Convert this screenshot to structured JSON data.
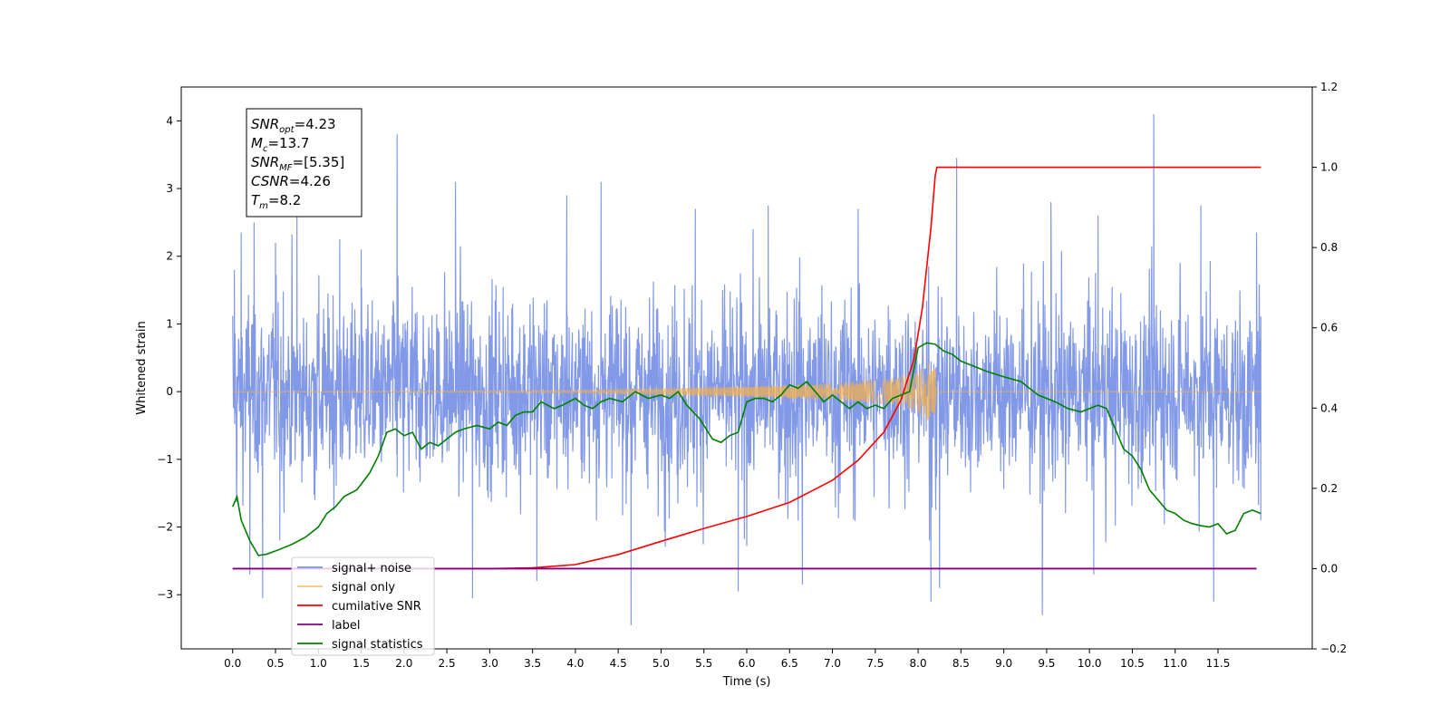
{
  "chart_data": {
    "type": "line",
    "title": "",
    "xlabel": "Time (s)",
    "ylabel": "Whitened strain",
    "xlim": [
      -0.6,
      12.6
    ],
    "ylim": [
      -3.8,
      4.5
    ],
    "ylim_right": [
      -0.2,
      1.2
    ],
    "xticks": [
      "0.0",
      "0.5",
      "1.0",
      "1.5",
      "2.0",
      "2.5",
      "3.0",
      "3.5",
      "4.0",
      "4.5",
      "5.0",
      "5.5",
      "6.0",
      "6.5",
      "7.0",
      "7.5",
      "8.0",
      "8.5",
      "9.0",
      "9.5",
      "10.0",
      "10.5",
      "11.0",
      "11.5"
    ],
    "yticks_left": [
      "−3",
      "−2",
      "−1",
      "0",
      "1",
      "2",
      "3",
      "4"
    ],
    "yticks_right": [
      "−0.2",
      "0.0",
      "0.2",
      "0.4",
      "0.6",
      "0.8",
      "1.0",
      "1.2"
    ],
    "grid": false,
    "legend_position": "lower-left",
    "annotation_box": {
      "lines": [
        {
          "base": "SNR",
          "sub": "opt",
          "value": "=4.23"
        },
        {
          "base": "M",
          "sub": "c",
          "value": "=13.7"
        },
        {
          "base": "SNR",
          "sub": "MF",
          "value": "=[5.35]"
        },
        {
          "base": "CSNR",
          "sub": "",
          "value": "=4.26"
        },
        {
          "base": "T",
          "sub": "m",
          "value": "=8.2"
        }
      ]
    },
    "series": [
      {
        "name": "signal+ noise",
        "color": "#7b93e6",
        "axis": "left",
        "description_x_range": [
          0.0,
          12.0
        ],
        "spikes": [
          [
            0.02,
            1.8
          ],
          [
            0.1,
            2.35
          ],
          [
            0.25,
            2.5
          ],
          [
            0.5,
            2.2
          ],
          [
            0.75,
            2.75
          ],
          [
            1.25,
            2.25
          ],
          [
            1.5,
            2.1
          ],
          [
            1.92,
            3.8
          ],
          [
            2.6,
            3.1
          ],
          [
            3.9,
            2.9
          ],
          [
            4.3,
            3.1
          ],
          [
            5.4,
            2.7
          ],
          [
            6.25,
            2.75
          ],
          [
            7.3,
            2.7
          ],
          [
            8.45,
            3.45
          ],
          [
            9.55,
            2.8
          ],
          [
            10.1,
            2.6
          ],
          [
            10.75,
            4.1
          ],
          [
            11.3,
            2.75
          ],
          [
            11.95,
            2.35
          ],
          [
            0.05,
            -1.05
          ],
          [
            0.2,
            -2.7
          ],
          [
            0.35,
            -3.05
          ],
          [
            0.55,
            -2.2
          ],
          [
            2.8,
            -3.05
          ],
          [
            3.55,
            -2.8
          ],
          [
            4.65,
            -3.45
          ],
          [
            5.9,
            -2.95
          ],
          [
            6.65,
            -2.85
          ],
          [
            8.15,
            -3.1
          ],
          [
            8.25,
            -2.9
          ],
          [
            9.45,
            -3.3
          ],
          [
            10.05,
            -2.7
          ],
          [
            11.45,
            -3.1
          ],
          [
            12.0,
            -1.9
          ]
        ],
        "typical_amplitude": 1.5
      },
      {
        "name": "signal only",
        "color": "#f0b050",
        "axis": "left",
        "x": [
          0.0,
          4.0,
          5.0,
          6.0,
          6.5,
          7.0,
          7.5,
          7.8,
          8.0,
          8.1,
          8.2,
          8.21,
          12.0
        ],
        "envelope": [
          0.0,
          0.02,
          0.05,
          0.08,
          0.1,
          0.13,
          0.17,
          0.22,
          0.3,
          0.4,
          0.6,
          0.0,
          0.0
        ]
      },
      {
        "name": "cumilative SNR",
        "color": "#ff0000",
        "axis": "right",
        "x": [
          0.0,
          3.0,
          3.5,
          4.0,
          4.5,
          5.0,
          5.5,
          6.0,
          6.5,
          7.0,
          7.3,
          7.6,
          7.8,
          7.95,
          8.05,
          8.15,
          8.2,
          8.22,
          12.0
        ],
        "y": [
          0.0,
          0.0,
          0.002,
          0.01,
          0.035,
          0.068,
          0.1,
          0.13,
          0.165,
          0.22,
          0.27,
          0.34,
          0.42,
          0.52,
          0.65,
          0.85,
          0.98,
          1.0,
          1.0
        ]
      },
      {
        "name": "label",
        "color": "#800080",
        "axis": "right",
        "x": [
          0.0,
          11.95
        ],
        "y": [
          0.0,
          0.0
        ]
      },
      {
        "name": "signal statistics",
        "color": "#008000",
        "axis": "left",
        "x": [
          0.0,
          0.05,
          0.1,
          0.2,
          0.3,
          0.4,
          0.55,
          0.7,
          0.85,
          1.0,
          1.1,
          1.2,
          1.3,
          1.45,
          1.6,
          1.7,
          1.8,
          1.9,
          2.0,
          2.1,
          2.2,
          2.3,
          2.4,
          2.5,
          2.6,
          2.7,
          2.85,
          3.0,
          3.1,
          3.2,
          3.3,
          3.4,
          3.5,
          3.6,
          3.75,
          3.85,
          4.0,
          4.1,
          4.2,
          4.3,
          4.4,
          4.55,
          4.7,
          4.85,
          5.0,
          5.1,
          5.2,
          5.3,
          5.45,
          5.6,
          5.7,
          5.8,
          5.9,
          6.0,
          6.1,
          6.2,
          6.3,
          6.4,
          6.5,
          6.6,
          6.7,
          6.8,
          6.9,
          7.0,
          7.1,
          7.2,
          7.3,
          7.4,
          7.5,
          7.6,
          7.7,
          7.8,
          7.9,
          8.0,
          8.1,
          8.2,
          8.3,
          8.4,
          8.5,
          8.6,
          8.8,
          9.0,
          9.2,
          9.4,
          9.6,
          9.75,
          9.9,
          10.0,
          10.1,
          10.2,
          10.3,
          10.4,
          10.5,
          10.6,
          10.7,
          10.8,
          10.9,
          11.0,
          11.1,
          11.2,
          11.3,
          11.4,
          11.5,
          11.6,
          11.7,
          11.8,
          11.9,
          12.0
        ],
        "y": [
          -1.7,
          -1.55,
          -1.9,
          -2.2,
          -2.42,
          -2.4,
          -2.33,
          -2.25,
          -2.15,
          -2.0,
          -1.8,
          -1.7,
          -1.55,
          -1.45,
          -1.2,
          -0.95,
          -0.6,
          -0.55,
          -0.65,
          -0.6,
          -0.85,
          -0.75,
          -0.8,
          -0.7,
          -0.6,
          -0.55,
          -0.5,
          -0.55,
          -0.45,
          -0.5,
          -0.35,
          -0.3,
          -0.3,
          -0.15,
          -0.25,
          -0.2,
          -0.1,
          -0.2,
          -0.25,
          -0.15,
          -0.1,
          -0.15,
          0.0,
          -0.1,
          -0.05,
          -0.1,
          0.0,
          -0.2,
          -0.4,
          -0.7,
          -0.75,
          -0.65,
          -0.6,
          -0.15,
          -0.1,
          -0.1,
          -0.15,
          -0.05,
          0.1,
          0.05,
          0.15,
          0.0,
          -0.15,
          -0.05,
          -0.15,
          -0.25,
          -0.15,
          -0.25,
          -0.2,
          -0.25,
          -0.1,
          -0.05,
          0.0,
          0.65,
          0.72,
          0.7,
          0.6,
          0.55,
          0.45,
          0.4,
          0.3,
          0.22,
          0.15,
          -0.05,
          -0.15,
          -0.25,
          -0.3,
          -0.25,
          -0.2,
          -0.25,
          -0.55,
          -0.85,
          -0.95,
          -1.15,
          -1.45,
          -1.6,
          -1.75,
          -1.8,
          -1.9,
          -1.95,
          -1.98,
          -2.0,
          -1.95,
          -2.1,
          -2.05,
          -1.8,
          -1.75,
          -1.8
        ]
      }
    ]
  }
}
